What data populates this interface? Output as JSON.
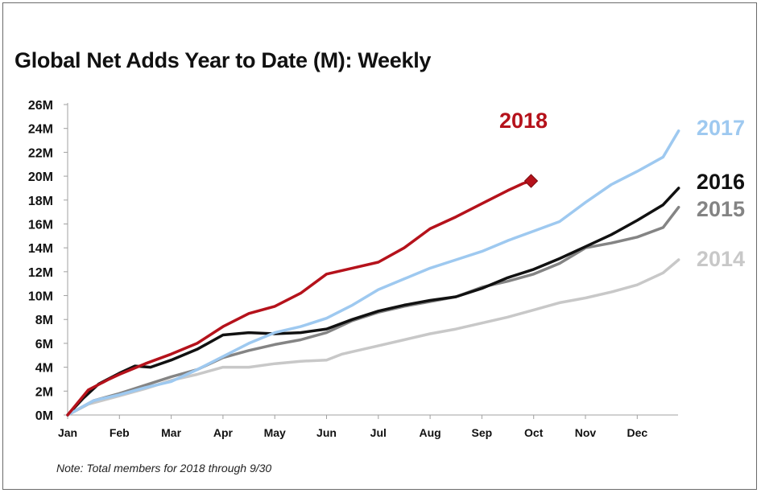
{
  "chart_data": {
    "type": "line",
    "title": "Global Net Adds Year to Date (M): Weekly",
    "note": "Note: Total members for 2018 through 9/30",
    "xlabel": "",
    "ylabel": "",
    "x_ticks": [
      "Jan",
      "Feb",
      "Mar",
      "Apr",
      "May",
      "Jun",
      "Jul",
      "Aug",
      "Sep",
      "Oct",
      "Nov",
      "Dec"
    ],
    "y_ticks": [
      "0M",
      "2M",
      "4M",
      "6M",
      "8M",
      "10M",
      "12M",
      "14M",
      "16M",
      "18M",
      "20M",
      "22M",
      "24M",
      "26M"
    ],
    "ylim": [
      0,
      26
    ],
    "xlim_months": [
      0,
      11.8
    ],
    "grid": false,
    "legend": "direct labels at right end of lines",
    "series": [
      {
        "name": "2014",
        "color": "#c8c8c8",
        "points": [
          [
            0,
            0
          ],
          [
            0.4,
            0.9
          ],
          [
            1,
            1.6
          ],
          [
            1.5,
            2.2
          ],
          [
            2,
            2.9
          ],
          [
            2.5,
            3.4
          ],
          [
            3,
            4.0
          ],
          [
            3.5,
            4.0
          ],
          [
            4,
            4.3
          ],
          [
            4.5,
            4.5
          ],
          [
            5,
            4.6
          ],
          [
            5.3,
            5.1
          ],
          [
            5.5,
            5.3
          ],
          [
            6,
            5.8
          ],
          [
            6.5,
            6.3
          ],
          [
            7,
            6.8
          ],
          [
            7.5,
            7.2
          ],
          [
            8,
            7.7
          ],
          [
            8.5,
            8.2
          ],
          [
            9,
            8.8
          ],
          [
            9.5,
            9.4
          ],
          [
            10,
            9.8
          ],
          [
            10.5,
            10.3
          ],
          [
            11,
            10.9
          ],
          [
            11.5,
            11.9
          ],
          [
            11.8,
            13.0
          ]
        ]
      },
      {
        "name": "2015",
        "color": "#848484",
        "points": [
          [
            0,
            0
          ],
          [
            0.5,
            1.2
          ],
          [
            1,
            1.8
          ],
          [
            1.5,
            2.5
          ],
          [
            2,
            3.2
          ],
          [
            2.5,
            3.8
          ],
          [
            3,
            4.8
          ],
          [
            3.5,
            5.4
          ],
          [
            4,
            5.9
          ],
          [
            4.5,
            6.3
          ],
          [
            5,
            6.9
          ],
          [
            5.5,
            7.9
          ],
          [
            6,
            8.6
          ],
          [
            6.5,
            9.1
          ],
          [
            7,
            9.5
          ],
          [
            7.5,
            9.9
          ],
          [
            8,
            10.7
          ],
          [
            8.5,
            11.2
          ],
          [
            9,
            11.8
          ],
          [
            9.5,
            12.7
          ],
          [
            10,
            14.0
          ],
          [
            10.5,
            14.4
          ],
          [
            11,
            14.9
          ],
          [
            11.5,
            15.7
          ],
          [
            11.8,
            17.4
          ]
        ]
      },
      {
        "name": "2016",
        "color": "#111111",
        "points": [
          [
            0,
            0
          ],
          [
            0.3,
            1.4
          ],
          [
            0.6,
            2.6
          ],
          [
            1,
            3.5
          ],
          [
            1.3,
            4.1
          ],
          [
            1.6,
            4.0
          ],
          [
            2,
            4.6
          ],
          [
            2.5,
            5.5
          ],
          [
            3,
            6.7
          ],
          [
            3.5,
            6.9
          ],
          [
            4,
            6.8
          ],
          [
            4.5,
            6.9
          ],
          [
            5,
            7.2
          ],
          [
            5.5,
            8.0
          ],
          [
            6,
            8.7
          ],
          [
            6.5,
            9.2
          ],
          [
            7,
            9.6
          ],
          [
            7.5,
            9.9
          ],
          [
            8,
            10.6
          ],
          [
            8.5,
            11.5
          ],
          [
            9,
            12.2
          ],
          [
            9.5,
            13.1
          ],
          [
            10,
            14.1
          ],
          [
            10.5,
            15.1
          ],
          [
            11,
            16.3
          ],
          [
            11.5,
            17.6
          ],
          [
            11.8,
            19.0
          ]
        ]
      },
      {
        "name": "2017",
        "color": "#9ec9f0",
        "points": [
          [
            0,
            0
          ],
          [
            0.5,
            1.2
          ],
          [
            1,
            1.7
          ],
          [
            1.5,
            2.3
          ],
          [
            2,
            2.8
          ],
          [
            2.5,
            3.8
          ],
          [
            3,
            4.9
          ],
          [
            3.5,
            6.0
          ],
          [
            4,
            6.9
          ],
          [
            4.5,
            7.4
          ],
          [
            5,
            8.1
          ],
          [
            5.5,
            9.2
          ],
          [
            6,
            10.5
          ],
          [
            6.5,
            11.4
          ],
          [
            7,
            12.3
          ],
          [
            7.5,
            13.0
          ],
          [
            8,
            13.7
          ],
          [
            8.5,
            14.6
          ],
          [
            9,
            15.4
          ],
          [
            9.5,
            16.2
          ],
          [
            10,
            17.8
          ],
          [
            10.5,
            19.3
          ],
          [
            11,
            20.4
          ],
          [
            11.5,
            21.6
          ],
          [
            11.8,
            23.8
          ]
        ]
      },
      {
        "name": "2018",
        "color": "#b5121b",
        "points": [
          [
            0,
            0
          ],
          [
            0.4,
            2.1
          ],
          [
            0.8,
            3.0
          ],
          [
            1,
            3.4
          ],
          [
            1.5,
            4.3
          ],
          [
            2,
            5.1
          ],
          [
            2.5,
            6.0
          ],
          [
            3,
            7.4
          ],
          [
            3.5,
            8.5
          ],
          [
            4,
            9.1
          ],
          [
            4.5,
            10.2
          ],
          [
            5,
            11.8
          ],
          [
            5.5,
            12.3
          ],
          [
            6,
            12.8
          ],
          [
            6.5,
            14.0
          ],
          [
            7,
            15.6
          ],
          [
            7.5,
            16.6
          ],
          [
            8,
            17.7
          ],
          [
            8.5,
            18.8
          ],
          [
            8.8,
            19.4
          ],
          [
            8.95,
            19.6
          ]
        ]
      }
    ]
  }
}
